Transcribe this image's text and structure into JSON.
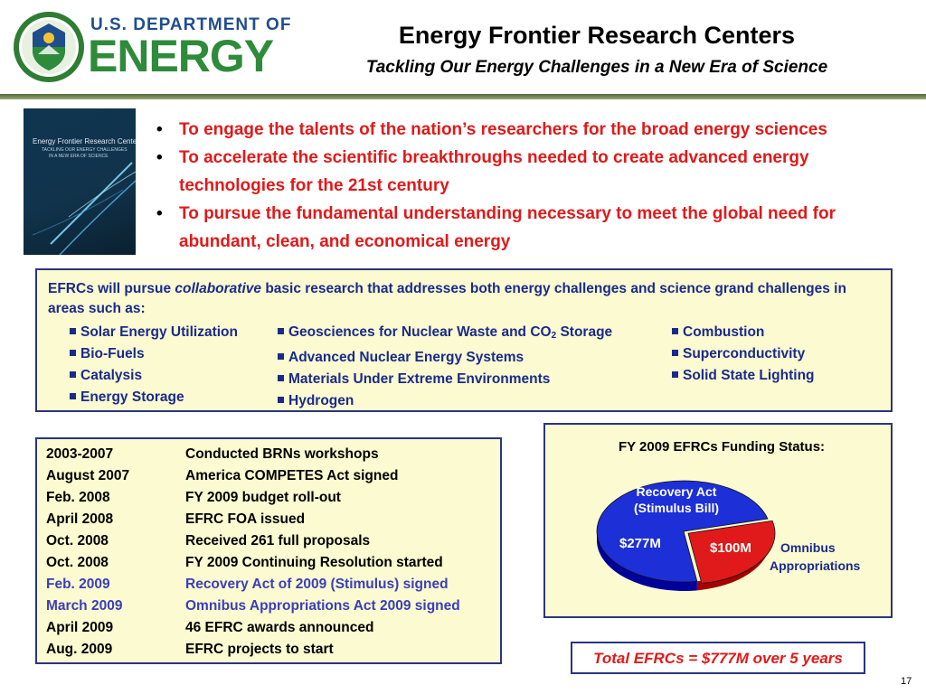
{
  "header": {
    "doe_line1": "U.S. DEPARTMENT OF",
    "doe_line2": "ENERGY",
    "title": "Energy Frontier Research Centers",
    "subtitle": "Tackling Our Energy Challenges in a New Era of Science"
  },
  "cover": {
    "title": "Energy Frontier Research Centers",
    "subtitle1": "TACKLING OUR ENERGY CHALLENGES",
    "subtitle2": "IN A NEW ERA OF SCIENCE"
  },
  "bullets": [
    "To engage the talents of the nation’s researchers for the broad energy sciences",
    "To accelerate the scientific breakthroughs needed to create advanced energy technologies for the 21st century",
    "To pursue the fundamental understanding necessary to meet the global need for abundant, clean, and economical energy"
  ],
  "areas": {
    "intro_before": "EFRCs will pursue ",
    "intro_em": "collaborative",
    "intro_after": " basic research that addresses both energy challenges and science grand challenges in areas such as:",
    "col1": [
      "Solar Energy Utilization",
      "Bio-Fuels",
      "Catalysis",
      "Energy Storage"
    ],
    "col2": [
      "Geosciences for Nuclear Waste and CO",
      "Advanced Nuclear Energy Systems",
      "Materials Under Extreme Environments",
      "Hydrogen"
    ],
    "col2_sub": "2",
    "col2_tail": " Storage",
    "col3": [
      "Combustion",
      "Superconductivity",
      "Solid State Lighting"
    ]
  },
  "timeline": [
    {
      "date": "2003-2007",
      "event": "Conducted BRNs workshops"
    },
    {
      "date": "August 2007",
      "event": "America COMPETES Act signed"
    },
    {
      "date": "Feb. 2008",
      "event": "FY 2009 budget roll-out"
    },
    {
      "date": "April 2008",
      "event": "EFRC FOA issued"
    },
    {
      "date": "Oct. 2008",
      "event": "Received 261 full proposals"
    },
    {
      "date": "Oct. 2008",
      "event": "FY 2009 Continuing Resolution started"
    },
    {
      "date": "Feb. 2009",
      "event": "Recovery Act of 2009 (Stimulus) signed"
    },
    {
      "date": "March 2009",
      "event": "Omnibus Appropriations Act 2009 signed"
    },
    {
      "date": "April 2009",
      "event": "46 EFRC awards announced"
    },
    {
      "date": "Aug. 2009",
      "event": "EFRC projects to start"
    }
  ],
  "funding": {
    "title": "FY 2009 EFRCs Funding Status:",
    "recovery_label1": "Recovery Act",
    "recovery_label2": "(Stimulus Bill)",
    "recovery_value": "$277M",
    "omnibus_value": "$100M",
    "omnibus_label1": "Omnibus",
    "omnibus_label2": "Appropriations"
  },
  "chart_data": {
    "type": "pie",
    "title": "FY 2009 EFRCs Funding Status:",
    "slices": [
      {
        "name": "Recovery Act (Stimulus Bill)",
        "value": 277,
        "label": "$277M",
        "color": "#1d2fd6"
      },
      {
        "name": "Omnibus Appropriations",
        "value": 100,
        "label": "$100M",
        "color": "#e01a1a"
      }
    ]
  },
  "total": "Total EFRCs = $777M over 5 years",
  "page_number": "17",
  "colors": {
    "title_red": "#e01a1a",
    "box_border": "#29357f",
    "box_fill": "#fbfad0",
    "text_blue": "#1a2a8c",
    "doe_green": "#2e8b3a",
    "doe_blue": "#1f4e8c"
  }
}
